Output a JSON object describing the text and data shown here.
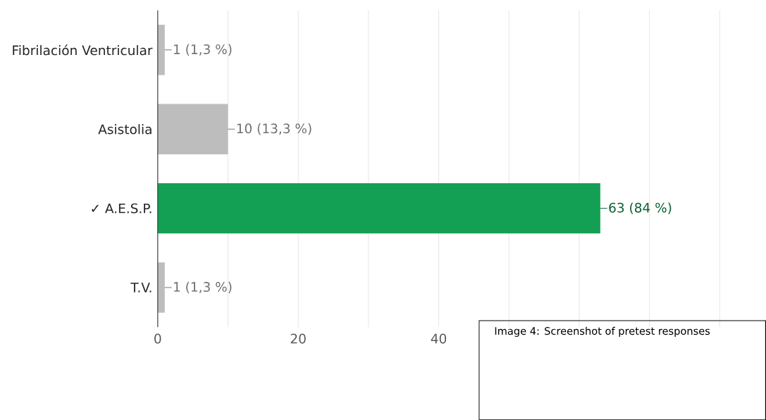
{
  "chart_data": {
    "type": "bar",
    "orientation": "horizontal",
    "categories": [
      "Fibrilación Ventricular",
      "Asistolia",
      "✓ A.E.S.P.",
      "T.V."
    ],
    "values": [
      1,
      10,
      63,
      1
    ],
    "colors": [
      "#bdbdbd",
      "#bdbdbd",
      "#13a055",
      "#bdbdbd"
    ],
    "value_labels": [
      "1 (1,3 %)",
      "10 (13,3 %)",
      "63 (84 %)",
      "1 (1,3 %)"
    ],
    "xlim": [
      0,
      80
    ],
    "xticks": [
      0,
      {
        "value": 10,
        "label": null
      },
      20,
      {
        "value": 30,
        "label": null
      },
      40,
      {
        "value": 50,
        "label": null
      },
      {
        "value": 60,
        "label": null
      },
      {
        "value": 70,
        "label": null
      },
      {
        "value": 80,
        "label": null
      }
    ],
    "grid": "x",
    "annotations": [
      "Image 4: Screenshot of pretest responses"
    ]
  }
}
